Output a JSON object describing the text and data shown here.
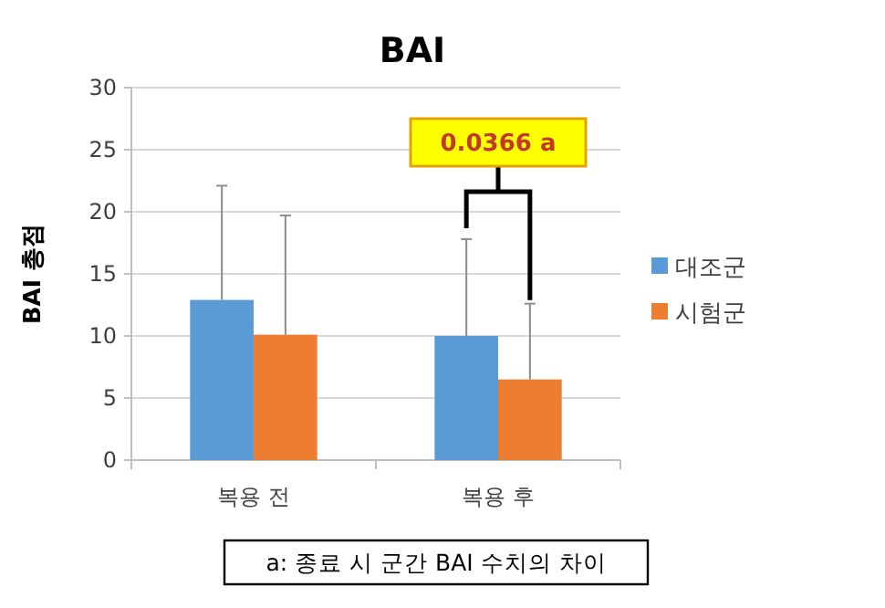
{
  "chart_data": {
    "type": "bar",
    "title": "BAI",
    "ylabel": "BAI 총점",
    "categories": [
      "복용 전",
      "복용 후"
    ],
    "series": [
      {
        "name": "대조군",
        "color": "#5b9bd5",
        "values": [
          12.9,
          10.0
        ],
        "errors": [
          [
            12.9,
            22.1
          ],
          [
            10.0,
            17.8
          ]
        ]
      },
      {
        "name": "시험군",
        "color": "#ed7d31",
        "values": [
          10.1,
          6.5
        ],
        "errors": [
          [
            10.1,
            19.7
          ],
          [
            6.5,
            12.6
          ]
        ]
      }
    ],
    "ylim": [
      0,
      30
    ],
    "yticks": [
      0,
      5,
      10,
      15,
      20,
      25,
      30
    ],
    "grid": "y",
    "legend": "right",
    "annotations": [
      "0.0366 a",
      "a: 종료 시 군간 BAI 수치의 차이"
    ]
  }
}
